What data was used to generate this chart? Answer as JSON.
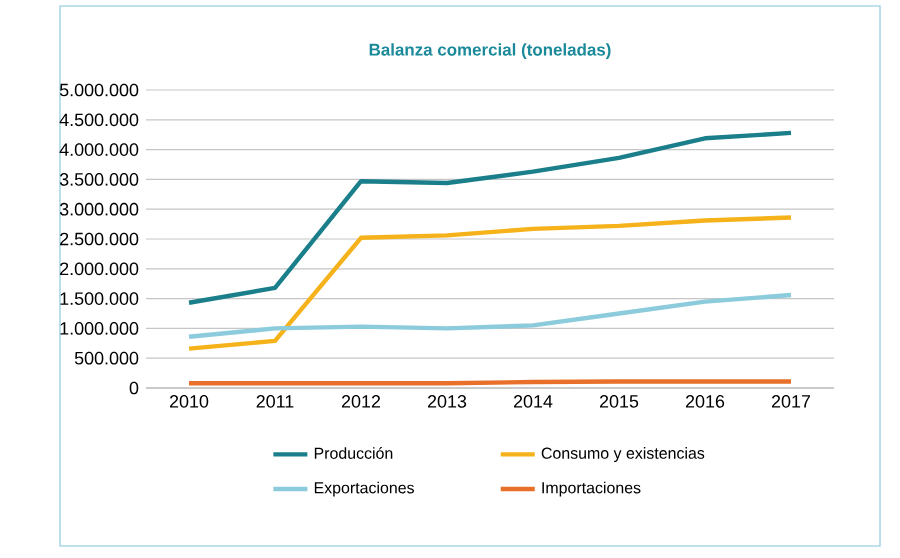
{
  "chart_data": {
    "type": "line",
    "title": "Balanza comercial (toneladas)",
    "categories": [
      "2010",
      "2011",
      "2012",
      "2013",
      "2014",
      "2015",
      "2016",
      "2017"
    ],
    "series": [
      {
        "name": "Producción",
        "color": "#1a7f8a",
        "values": [
          1430000,
          1680000,
          3470000,
          3440000,
          3630000,
          3860000,
          4190000,
          4280000
        ]
      },
      {
        "name": "Consumo y existencias",
        "color": "#f5b21a",
        "values": [
          660000,
          790000,
          2520000,
          2560000,
          2670000,
          2720000,
          2810000,
          2860000
        ]
      },
      {
        "name": "Exportaciones",
        "color": "#8ccbdc",
        "values": [
          860000,
          1000000,
          1030000,
          1000000,
          1050000,
          1250000,
          1450000,
          1560000
        ]
      },
      {
        "name": "Importaciones",
        "color": "#e8702a",
        "values": [
          80000,
          80000,
          80000,
          80000,
          100000,
          110000,
          110000,
          110000
        ]
      }
    ],
    "ylim": [
      0,
      5000000
    ],
    "yticks": [
      {
        "value": 0,
        "label": "0"
      },
      {
        "value": 500000,
        "label": "500.000"
      },
      {
        "value": 1000000,
        "label": "1.000.000"
      },
      {
        "value": 1500000,
        "label": "1.500.000"
      },
      {
        "value": 2000000,
        "label": "2.000.000"
      },
      {
        "value": 2500000,
        "label": "2.500.000"
      },
      {
        "value": 3000000,
        "label": "3.000.000"
      },
      {
        "value": 3500000,
        "label": "3.500.000"
      },
      {
        "value": 4000000,
        "label": "4.000.000"
      },
      {
        "value": 4500000,
        "label": "4.500.000"
      },
      {
        "value": 5000000,
        "label": "5.000.000"
      }
    ],
    "grid": "y",
    "legend": "bottom",
    "marker": "none",
    "line_style": "solid"
  }
}
